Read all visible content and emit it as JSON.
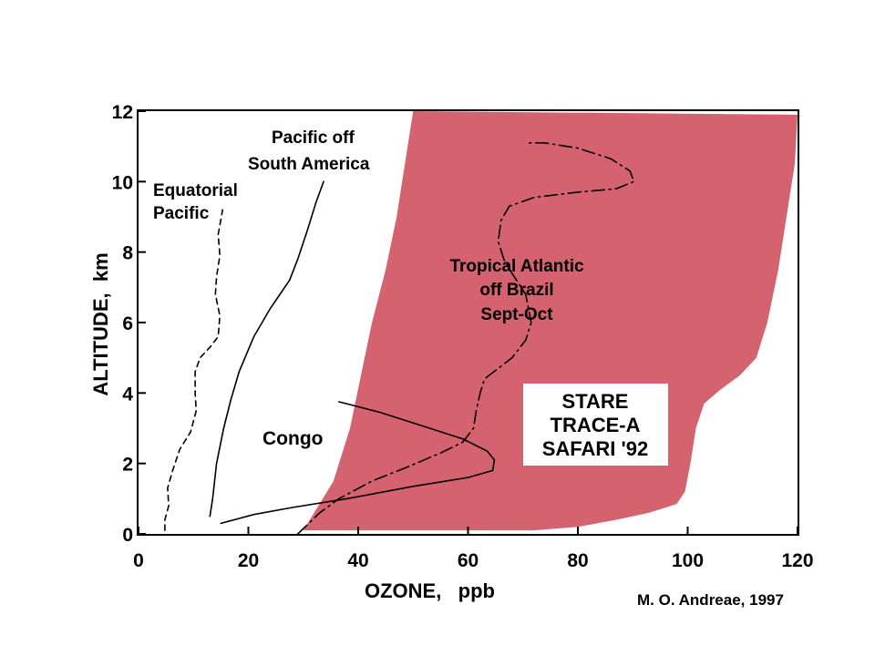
{
  "chart_data": {
    "type": "line",
    "xlabel": "OZONE,   ppb",
    "ylabel": "ALTITUDE,  km",
    "xlim": [
      0,
      120
    ],
    "ylim": [
      0,
      12
    ],
    "x_ticks": [
      0,
      20,
      40,
      60,
      80,
      100,
      120
    ],
    "y_ticks": [
      0,
      2,
      4,
      6,
      8,
      10,
      12
    ],
    "grid": false,
    "series": [
      {
        "name": "Equatorial Pacific",
        "style": "dashed",
        "points": [
          [
            4.8,
            0.1
          ],
          [
            4.8,
            0.4
          ],
          [
            5.5,
            0.8
          ],
          [
            5.3,
            1.3
          ],
          [
            6.2,
            1.8
          ],
          [
            7.5,
            2.4
          ],
          [
            9.5,
            2.9
          ],
          [
            10.5,
            3.5
          ],
          [
            10.3,
            4.0
          ],
          [
            10.3,
            4.6
          ],
          [
            11.2,
            5.0
          ],
          [
            13.0,
            5.3
          ],
          [
            14.5,
            5.6
          ],
          [
            14.8,
            6.2
          ],
          [
            14.0,
            6.8
          ],
          [
            14.2,
            7.3
          ],
          [
            14.8,
            7.9
          ],
          [
            14.5,
            8.5
          ],
          [
            15.3,
            9.2
          ]
        ]
      },
      {
        "name": "Pacific off South America",
        "style": "solid",
        "points": [
          [
            13.0,
            0.5
          ],
          [
            13.5,
            1.0
          ],
          [
            14.2,
            2.0
          ],
          [
            15.5,
            3.0
          ],
          [
            16.8,
            3.8
          ],
          [
            18.3,
            4.6
          ],
          [
            21.0,
            5.6
          ],
          [
            24.0,
            6.4
          ],
          [
            27.5,
            7.2
          ],
          [
            29.0,
            7.8
          ],
          [
            30.7,
            8.6
          ],
          [
            32.3,
            9.4
          ],
          [
            33.7,
            10.0
          ]
        ]
      },
      {
        "name": "Congo",
        "style": "solid",
        "points": [
          [
            15.0,
            0.3
          ],
          [
            21.0,
            0.55
          ],
          [
            28.0,
            0.75
          ],
          [
            38.0,
            1.0
          ],
          [
            50.0,
            1.35
          ],
          [
            60.0,
            1.6
          ],
          [
            64.5,
            1.8
          ],
          [
            64.8,
            2.1
          ],
          [
            63.5,
            2.35
          ],
          [
            59.0,
            2.7
          ],
          [
            51.0,
            3.1
          ],
          [
            44.0,
            3.45
          ],
          [
            36.5,
            3.75
          ]
        ]
      },
      {
        "name": "Tropical Atlantic off Brazil Sept-Oct",
        "style": "dash-dot",
        "points": [
          [
            29.0,
            0.0
          ],
          [
            33.0,
            0.6
          ],
          [
            36.5,
            1.0
          ],
          [
            42.5,
            1.5
          ],
          [
            49.0,
            1.9
          ],
          [
            55.0,
            2.3
          ],
          [
            59.0,
            2.6
          ],
          [
            61.0,
            3.0
          ],
          [
            61.5,
            3.5
          ],
          [
            62.2,
            4.0
          ],
          [
            63.0,
            4.4
          ],
          [
            65.5,
            4.7
          ],
          [
            68.0,
            5.0
          ],
          [
            70.5,
            5.5
          ],
          [
            71.5,
            6.0
          ],
          [
            70.5,
            6.8
          ],
          [
            68.0,
            7.4
          ],
          [
            66.5,
            7.8
          ],
          [
            65.5,
            8.3
          ],
          [
            66.0,
            8.9
          ],
          [
            67.5,
            9.3
          ],
          [
            72.0,
            9.55
          ],
          [
            80.0,
            9.7
          ],
          [
            87.0,
            9.8
          ],
          [
            90.2,
            10.0
          ],
          [
            89.5,
            10.3
          ],
          [
            86.0,
            10.65
          ],
          [
            80.0,
            10.95
          ],
          [
            74.0,
            11.1
          ],
          [
            71.0,
            11.1
          ]
        ]
      },
      {
        "name": "STARE TRACE-A SAFARI '92",
        "style": "filled-region",
        "points": [
          [
            50.0,
            12.0
          ],
          [
            48.5,
            10.5
          ],
          [
            47.0,
            9.0
          ],
          [
            45.0,
            7.5
          ],
          [
            42.5,
            6.0
          ],
          [
            40.5,
            4.5
          ],
          [
            38.5,
            3.0
          ],
          [
            35.5,
            1.5
          ],
          [
            30.0,
            0.1
          ],
          [
            72.0,
            0.1
          ],
          [
            80.0,
            0.2
          ],
          [
            87.0,
            0.4
          ],
          [
            93.0,
            0.6
          ],
          [
            98.0,
            0.85
          ],
          [
            99.5,
            1.2
          ],
          [
            100.5,
            2.0
          ],
          [
            101.5,
            3.0
          ],
          [
            103.0,
            3.7
          ],
          [
            106.0,
            4.1
          ],
          [
            109.5,
            4.5
          ],
          [
            112.5,
            5.0
          ],
          [
            114.5,
            6.0
          ],
          [
            116.5,
            7.5
          ],
          [
            118.0,
            9.0
          ],
          [
            119.5,
            10.5
          ],
          [
            120.0,
            11.9
          ]
        ]
      }
    ],
    "annotations": {
      "equatorial_line1": "Equatorial",
      "equatorial_line2": "Pacific",
      "pacific_sa_line1": "Pacific off",
      "pacific_sa_line2": "South America",
      "atlantic_line1": "Tropical Atlantic",
      "atlantic_line2": "off Brazil",
      "atlantic_line3": "Sept-Oct",
      "congo": "Congo",
      "box_line1": "STARE",
      "box_line2": "TRACE-A",
      "box_line3": "SAFARI '92",
      "credit": "M. O. Andreae, 1997"
    },
    "colors": {
      "region_fill": "#d5626f",
      "line": "#000000",
      "box_fill": "#ffffff"
    }
  }
}
